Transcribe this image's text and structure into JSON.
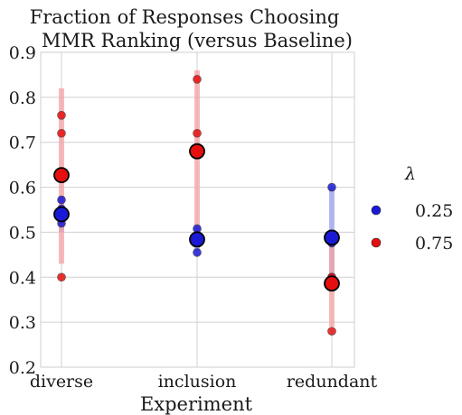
{
  "chart_data": {
    "type": "scatter",
    "title": [
      "Fraction of Responses Choosing",
      "MMR Ranking (versus Baseline)"
    ],
    "xlabel": "Experiment",
    "ylabel": "",
    "categories": [
      "diverse",
      "inclusion",
      "redundant"
    ],
    "ylim": [
      0.2,
      0.9
    ],
    "yticks": [
      "0.2",
      "0.3",
      "0.4",
      "0.5",
      "0.6",
      "0.7",
      "0.8",
      "0.9"
    ],
    "grid": true,
    "legend": {
      "title": "λ",
      "placement": "right"
    },
    "series": [
      {
        "name": "0.25",
        "color": "#1a1ad6",
        "band_color": "#9aa0f0",
        "means": [
          0.54,
          0.484,
          0.488
        ],
        "ci_low": [
          0.5,
          0.46,
          0.4
        ],
        "ci_high": [
          0.58,
          0.51,
          0.6
        ],
        "points": [
          {
            "cat": 0,
            "y": 0.572
          },
          {
            "cat": 0,
            "y": 0.552
          },
          {
            "cat": 0,
            "y": 0.52
          },
          {
            "cat": 1,
            "y": 0.508
          },
          {
            "cat": 1,
            "y": 0.48
          },
          {
            "cat": 1,
            "y": 0.455
          },
          {
            "cat": 2,
            "y": 0.6
          },
          {
            "cat": 2,
            "y": 0.476
          },
          {
            "cat": 2,
            "y": 0.4
          }
        ]
      },
      {
        "name": "0.75",
        "color": "#e60f0f",
        "band_color": "#f4a3a3",
        "means": [
          0.627,
          0.68,
          0.386
        ],
        "ci_low": [
          0.43,
          0.48,
          0.29
        ],
        "ci_high": [
          0.82,
          0.86,
          0.48
        ],
        "points": [
          {
            "cat": 0,
            "y": 0.76
          },
          {
            "cat": 0,
            "y": 0.72
          },
          {
            "cat": 0,
            "y": 0.4
          },
          {
            "cat": 1,
            "y": 0.84
          },
          {
            "cat": 1,
            "y": 0.72
          },
          {
            "cat": 1,
            "y": 0.48
          },
          {
            "cat": 2,
            "y": 0.48
          },
          {
            "cat": 2,
            "y": 0.4
          },
          {
            "cat": 2,
            "y": 0.28
          }
        ]
      }
    ]
  }
}
